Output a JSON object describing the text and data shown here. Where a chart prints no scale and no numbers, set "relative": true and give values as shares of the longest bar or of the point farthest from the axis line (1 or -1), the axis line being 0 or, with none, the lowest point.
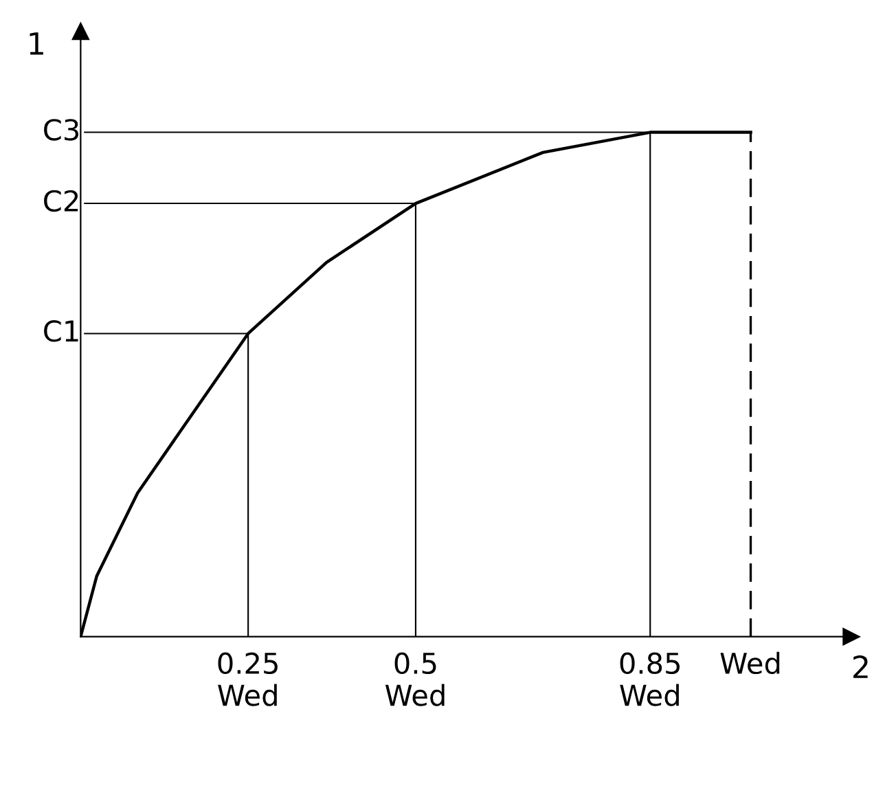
{
  "chart_data": {
    "type": "line",
    "relative": true,
    "xlabel": "2",
    "ylabel": "1",
    "x": [
      0,
      0.024,
      0.085,
      0.145,
      0.25,
      0.367,
      0.5,
      0.69,
      0.85,
      1
    ],
    "series": [
      {
        "color": "#000000",
        "values": [
          0,
          0.12,
          0.285,
          0.4,
          0.601,
          0.742,
          0.859,
          0.96,
          1,
          1
        ]
      },
      {
        "type": "bar",
        "color": "#000000",
        "x": [
          0.25,
          0.5,
          0.85
        ],
        "values": [
          0.601,
          0.859,
          1
        ]
      }
    ],
    "ref_lines": [
      {
        "axis": "x",
        "value": 1,
        "line_style": "dashed"
      }
    ],
    "xlim": [
      0,
      1.15
    ],
    "xticks": [
      {
        "value": 0.25,
        "label": "0.25\nWed"
      },
      {
        "value": 0.5,
        "label": "0.5\nWed"
      },
      {
        "value": 0.85,
        "label": "0.85\nWed"
      },
      {
        "value": 1,
        "label": "Wed"
      }
    ],
    "annotations": [
      {
        "text": "C1",
        "x": 0.25,
        "y": 0.601
      },
      {
        "text": "C2",
        "x": 0.5,
        "y": 0.859
      },
      {
        "text": "C3",
        "x": 1,
        "y": 1
      }
    ],
    "grid": false,
    "legend": false,
    "marker": "none",
    "line_style": "solid"
  }
}
